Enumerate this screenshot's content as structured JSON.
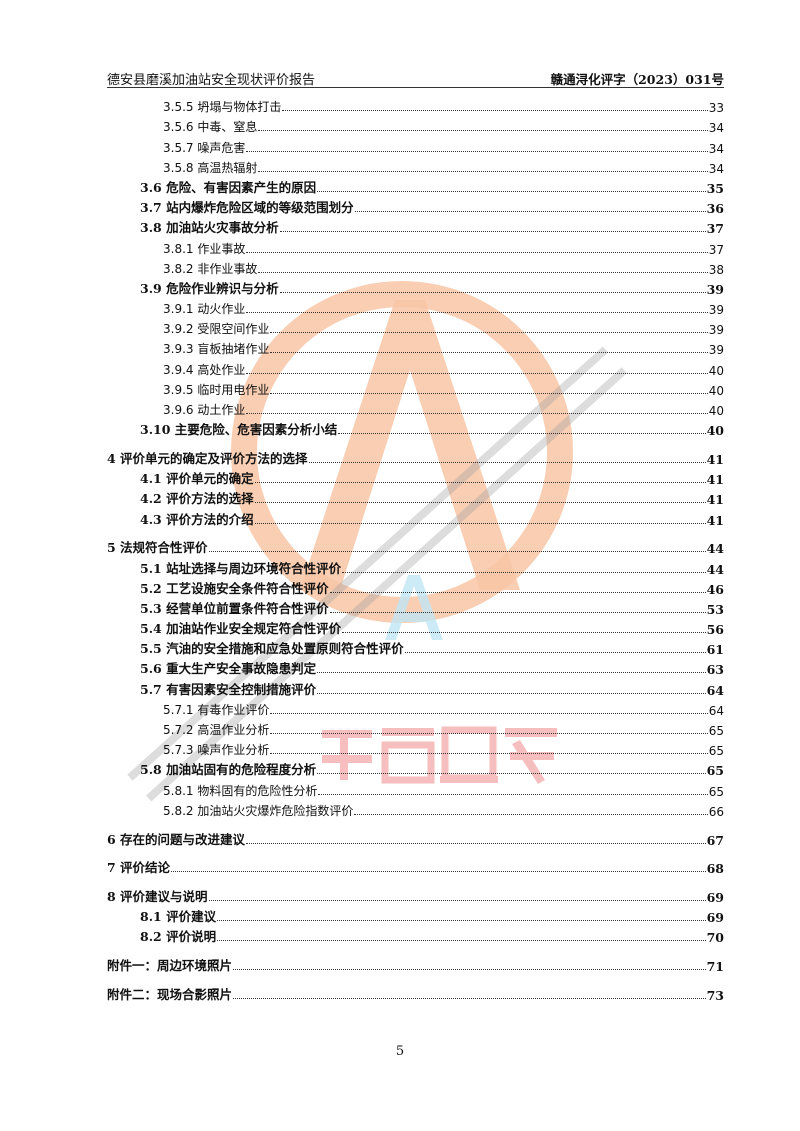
{
  "header": {
    "left": "德安县磨溪加油站安全现状评价报告",
    "right": "赣通浔化评字（2023）031号"
  },
  "toc": [
    {
      "level": 3,
      "title": "3.5.5 坍塌与物体打击",
      "page": "33"
    },
    {
      "level": 3,
      "title": "3.5.6 中毒、窒息",
      "page": "34"
    },
    {
      "level": 3,
      "title": "3.5.7 噪声危害",
      "page": "34"
    },
    {
      "level": 3,
      "title": "3.5.8 高温热辐射",
      "page": "34"
    },
    {
      "level": 2,
      "title": "3.6 危险、有害因素产生的原因",
      "page": "35"
    },
    {
      "level": 2,
      "title": "3.7 站内爆炸危险区域的等级范围划分",
      "page": "36"
    },
    {
      "level": 2,
      "title": "3.8 加油站火灾事故分析",
      "page": "37"
    },
    {
      "level": 3,
      "title": "3.8.1 作业事故",
      "page": "37"
    },
    {
      "level": 3,
      "title": "3.8.2 非作业事故",
      "page": "38"
    },
    {
      "level": 2,
      "title": "3.9 危险作业辨识与分析",
      "page": "39"
    },
    {
      "level": 3,
      "title": "3.9.1 动火作业",
      "page": "39"
    },
    {
      "level": 3,
      "title": "3.9.2 受限空间作业",
      "page": "39"
    },
    {
      "level": 3,
      "title": "3.9.3 盲板抽堵作业",
      "page": "39"
    },
    {
      "level": 3,
      "title": "3.9.4 高处作业",
      "page": "40"
    },
    {
      "level": 3,
      "title": "3.9.5 临时用电作业",
      "page": "40"
    },
    {
      "level": 3,
      "title": "3.9.6 动土作业",
      "page": "40"
    },
    {
      "level": 2,
      "title": "3.10 主要危险、危害因素分析小结",
      "page": "40"
    },
    {
      "level": 1,
      "title": "4 评价单元的确定及评价方法的选择",
      "page": "41"
    },
    {
      "level": 2,
      "title": "4.1 评价单元的确定",
      "page": "41"
    },
    {
      "level": 2,
      "title": "4.2 评价方法的选择",
      "page": "41"
    },
    {
      "level": 2,
      "title": "4.3 评价方法的介绍",
      "page": "41"
    },
    {
      "level": 1,
      "title": "5 法规符合性评价",
      "page": "44"
    },
    {
      "level": 2,
      "title": "5.1 站址选择与周边环境符合性评价",
      "page": "44"
    },
    {
      "level": 2,
      "title": "5.2 工艺设施安全条件符合性评价",
      "page": "46"
    },
    {
      "level": 2,
      "title": "5.3 经营单位前置条件符合性评价",
      "page": "53"
    },
    {
      "level": 2,
      "title": "5.4 加油站作业安全规定符合性评价",
      "page": "56"
    },
    {
      "level": 2,
      "title": "5.5 汽油的安全措施和应急处置原则符合性评价",
      "page": "61"
    },
    {
      "level": 2,
      "title": "5.6 重大生产安全事故隐患判定",
      "page": "63"
    },
    {
      "level": 2,
      "title": "5.7 有害因素安全控制措施评价",
      "page": "64"
    },
    {
      "level": 3,
      "title": "5.7.1 有毒作业评价",
      "page": "64"
    },
    {
      "level": 3,
      "title": "5.7.2 高温作业分析",
      "page": "65"
    },
    {
      "level": 3,
      "title": "5.7.3 噪声作业分析",
      "page": "65"
    },
    {
      "level": 2,
      "title": "5.8 加油站固有的危险程度分析",
      "page": "65"
    },
    {
      "level": 3,
      "title": "5.8.1 物料固有的危险性分析",
      "page": "65"
    },
    {
      "level": 3,
      "title": "5.8.2 加油站火灾爆炸危险指数评价",
      "page": "66"
    },
    {
      "level": 1,
      "title": "6 存在的问题与改进建议",
      "page": "67"
    },
    {
      "level": 1,
      "title": "7 评价结论",
      "page": "68"
    },
    {
      "level": 1,
      "title": "8 评价建议与说明",
      "page": "69"
    },
    {
      "level": 2,
      "title": "8.1 评价建议",
      "page": "69"
    },
    {
      "level": 2,
      "title": "8.2 评价说明",
      "page": "70"
    },
    {
      "level": 1,
      "title": "附件一：周边环境照片",
      "page": "71"
    },
    {
      "level": 1,
      "title": "附件二：现场合影照片",
      "page": "73"
    }
  ],
  "page_number": "5",
  "watermark": {
    "stamp_text": "江西通安",
    "logo_letter": "A",
    "colors": {
      "ring": "#f6b48c",
      "stamp": "#f08a8a",
      "diagonal": "#b8b8b8",
      "letter": "#9ad8ef"
    }
  }
}
